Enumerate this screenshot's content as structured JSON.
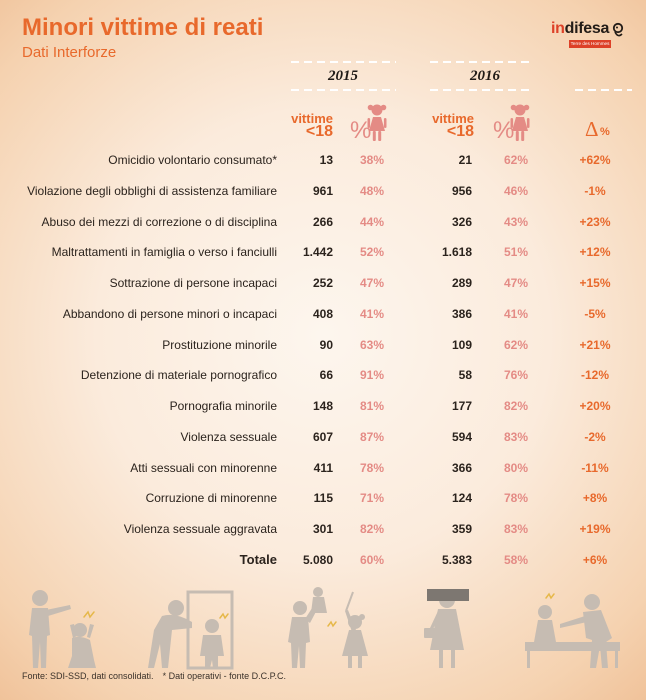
{
  "colors": {
    "accent": "#e8692c",
    "pink": "#e48b85",
    "text": "#2b231d",
    "silhouette": "#c6bcb2",
    "logo_red": "#dd4128"
  },
  "logo": {
    "part_in": "in",
    "part_difesa": "difesa",
    "tagline": "Terre des Hommes",
    "icon": "mask-icon"
  },
  "chart_data": {
    "type": "table",
    "title": "Minori vittime di reati",
    "subtitle": "Dati Interforze",
    "years": [
      "2015",
      "2016"
    ],
    "column_labels": {
      "victims_line1": "vittime",
      "victims_line2": "<18",
      "female_pct": "%",
      "female_pct_icon": "girl-icon",
      "delta_symbol": "Δ",
      "delta_unit": "%"
    },
    "rows": [
      {
        "label": "Omicidio volontario consumato*",
        "victims_2015": "13",
        "female_pct_2015": "38%",
        "victims_2016": "21",
        "female_pct_2016": "62%",
        "delta": "+62%"
      },
      {
        "label": "Violazione degli obblighi di assistenza familiare",
        "victims_2015": "961",
        "female_pct_2015": "48%",
        "victims_2016": "956",
        "female_pct_2016": "46%",
        "delta": "-1%"
      },
      {
        "label": "Abuso dei mezzi di correzione o di disciplina",
        "victims_2015": "266",
        "female_pct_2015": "44%",
        "victims_2016": "326",
        "female_pct_2016": "43%",
        "delta": "+23%"
      },
      {
        "label": "Maltrattamenti in famiglia o verso i fanciulli",
        "victims_2015": "1.442",
        "female_pct_2015": "52%",
        "victims_2016": "1.618",
        "female_pct_2016": "51%",
        "delta": "+12%"
      },
      {
        "label": "Sottrazione di persone incapaci",
        "victims_2015": "252",
        "female_pct_2015": "47%",
        "victims_2016": "289",
        "female_pct_2016": "47%",
        "delta": "+15%"
      },
      {
        "label": "Abbandono di persone minori o incapaci",
        "victims_2015": "408",
        "female_pct_2015": "41%",
        "victims_2016": "386",
        "female_pct_2016": "41%",
        "delta": "-5%"
      },
      {
        "label": "Prostituzione minorile",
        "victims_2015": "90",
        "female_pct_2015": "63%",
        "victims_2016": "109",
        "female_pct_2016": "62%",
        "delta": "+21%"
      },
      {
        "label": "Detenzione di materiale pornografico",
        "victims_2015": "66",
        "female_pct_2015": "91%",
        "victims_2016": "58",
        "female_pct_2016": "76%",
        "delta": "-12%"
      },
      {
        "label": "Pornografia minorile",
        "victims_2015": "148",
        "female_pct_2015": "81%",
        "victims_2016": "177",
        "female_pct_2016": "82%",
        "delta": "+20%"
      },
      {
        "label": "Violenza sessuale",
        "victims_2015": "607",
        "female_pct_2015": "87%",
        "victims_2016": "594",
        "female_pct_2016": "83%",
        "delta": "-2%"
      },
      {
        "label": "Atti sessuali con minorenne",
        "victims_2015": "411",
        "female_pct_2015": "78%",
        "victims_2016": "366",
        "female_pct_2016": "80%",
        "delta": "-11%"
      },
      {
        "label": "Corruzione di minorenne",
        "victims_2015": "115",
        "female_pct_2015": "71%",
        "victims_2016": "124",
        "female_pct_2016": "78%",
        "delta": "+8%"
      },
      {
        "label": "Violenza sessuale aggravata",
        "victims_2015": "301",
        "female_pct_2015": "82%",
        "victims_2016": "359",
        "female_pct_2016": "83%",
        "delta": "+19%"
      }
    ],
    "total": {
      "label": "Totale",
      "victims_2015": "5.080",
      "female_pct_2015": "60%",
      "victims_2016": "5.383",
      "female_pct_2016": "58%",
      "delta": "+6%"
    }
  },
  "illustrations": [
    "adult-scolding-child-silhouette",
    "doorway-silhouette",
    "adult-lifting-child-silhouette",
    "censored-girl-silhouette",
    "bed-scene-silhouette"
  ],
  "footer": {
    "source": "Fonte: SDI-SSD, dati consolidati.",
    "note": "* Dati operativi - fonte D.C.P.C."
  }
}
